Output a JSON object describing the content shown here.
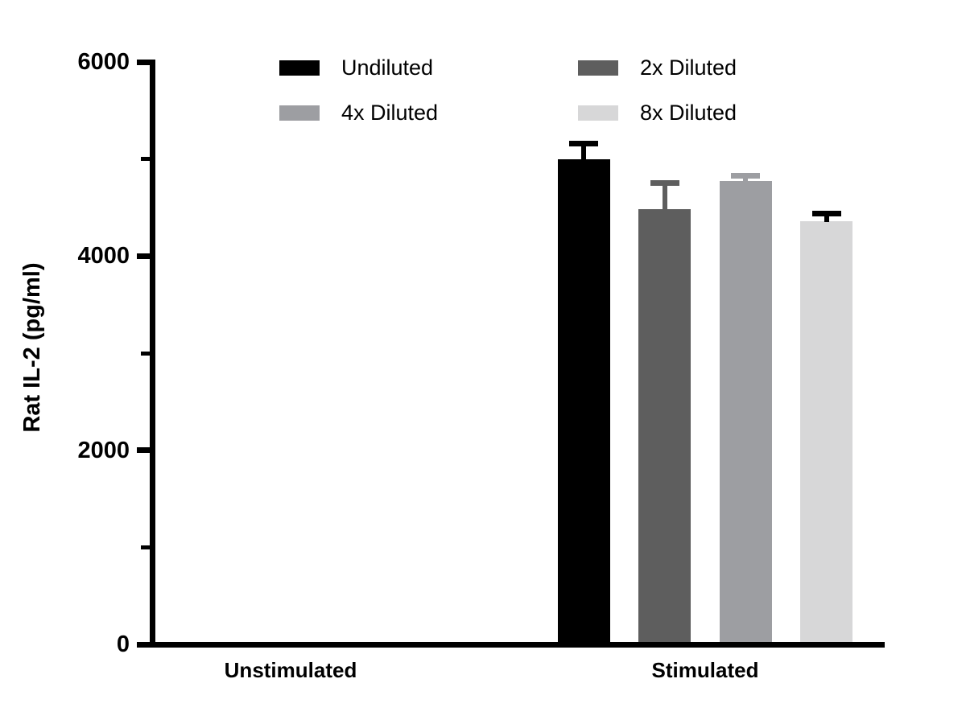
{
  "chart_data": {
    "type": "bar",
    "title": "",
    "ylabel": "Rat IL-2 (pg/ml)",
    "xlabel": "",
    "ylim": [
      0,
      6000
    ],
    "yticks_major": [
      0,
      2000,
      4000,
      6000
    ],
    "ytick_labels": [
      "0",
      "2000",
      "4000",
      "6000"
    ],
    "yticks_minor": [
      1000,
      3000,
      5000
    ],
    "grid": false,
    "legend_position": "top",
    "categories": [
      "Unstimulated",
      "Stimulated"
    ],
    "series": [
      {
        "name": "Undiluted",
        "color": "#000000",
        "error_color": "#000000",
        "values": [
          0,
          5000
        ],
        "errors": [
          0,
          155
        ]
      },
      {
        "name": "2x Diluted",
        "color": "#5e5e5e",
        "error_color": "#5e5e5e",
        "values": [
          0,
          4480
        ],
        "errors": [
          0,
          275
        ]
      },
      {
        "name": "4x Diluted",
        "color": "#9d9ea2",
        "error_color": "#9d9ea2",
        "values": [
          0,
          4775
        ],
        "errors": [
          0,
          50
        ]
      },
      {
        "name": "8x Diluted",
        "color": "#d7d7d8",
        "error_color": "#000000",
        "values": [
          0,
          4360
        ],
        "errors": [
          0,
          75
        ]
      }
    ],
    "axis_color": "#000000",
    "background_color": "#ffffff"
  }
}
